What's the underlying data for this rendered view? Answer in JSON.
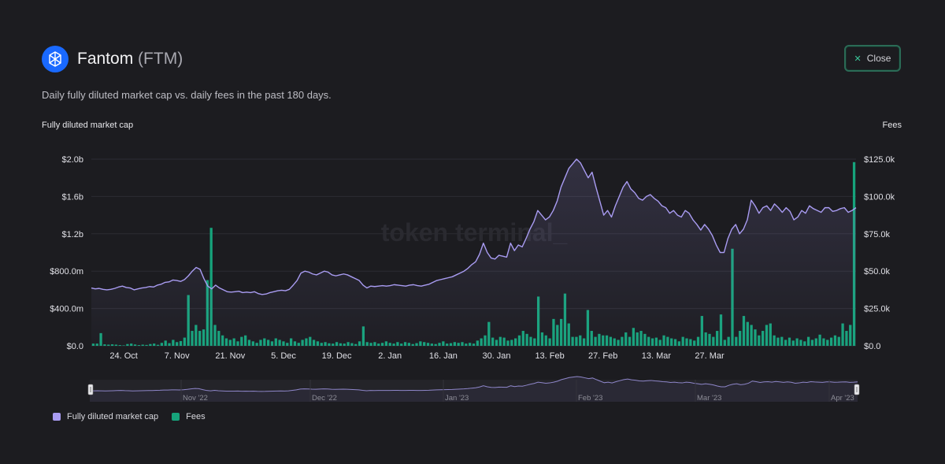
{
  "header": {
    "name": "Fantom",
    "ticker": "(FTM)",
    "close_label": "Close"
  },
  "subtitle": "Daily fully diluted market cap vs. daily fees in the past 180 days.",
  "colors": {
    "background": "#1c1c20",
    "market_cap_line": "#a99cf2",
    "fees_bar": "#16a37b",
    "brand": "#1969ff",
    "close_border": "#2b6b56"
  },
  "chart_data": {
    "type": "bar",
    "watermark": "token terminal_",
    "left_axis_label": "Fully diluted market cap",
    "right_axis_label": "Fees",
    "left_axis": {
      "ticks": [
        "$0.0",
        "$400.0m",
        "$800.0m",
        "$1.2b",
        "$1.6b",
        "$2.0b"
      ],
      "range": [
        0,
        2000000000
      ]
    },
    "right_axis": {
      "ticks": [
        "$0.0",
        "$25.0k",
        "$50.0k",
        "$75.0k",
        "$100.0k",
        "$125.0k"
      ],
      "range": [
        0,
        125000
      ]
    },
    "x_tick_labels": [
      "24. Oct",
      "7. Nov",
      "21. Nov",
      "5. Dec",
      "19. Dec",
      "2. Jan",
      "16. Jan",
      "30. Jan",
      "13. Feb",
      "27. Feb",
      "13. Mar",
      "27. Mar"
    ],
    "navigator_labels": [
      "Nov '22",
      "Dec '22",
      "Jan '23",
      "Feb '23",
      "Mar '23",
      "Apr '23"
    ],
    "grid": true,
    "legend_position": "bottom-left",
    "series": [
      {
        "name": "Fully diluted market cap",
        "type": "line",
        "axis": "left",
        "values": [
          620,
          610,
          615,
          605,
          600,
          605,
          615,
          630,
          640,
          625,
          620,
          600,
          610,
          620,
          625,
          635,
          630,
          650,
          660,
          680,
          685,
          705,
          700,
          690,
          710,
          750,
          800,
          840,
          820,
          720,
          640,
          610,
          650,
          620,
          600,
          580,
          575,
          580,
          585,
          570,
          575,
          570,
          580,
          560,
          550,
          555,
          570,
          580,
          590,
          595,
          590,
          605,
          650,
          700,
          780,
          800,
          790,
          770,
          760,
          780,
          800,
          790,
          760,
          750,
          760,
          770,
          760,
          740,
          720,
          700,
          650,
          620,
          640,
          635,
          640,
          645,
          640,
          645,
          655,
          650,
          645,
          640,
          650,
          655,
          645,
          640,
          650,
          660,
          680,
          700,
          710,
          720,
          730,
          740,
          760,
          780,
          800,
          830,
          870,
          900,
          980,
          1100,
          1000,
          940,
          930,
          970,
          960,
          950,
          1100,
          1020,
          1080,
          1060,
          1150,
          1250,
          1330,
          1450,
          1400,
          1350,
          1380,
          1450,
          1550,
          1700,
          1800,
          1900,
          1950,
          2000,
          1960,
          1880,
          1800,
          1860,
          1700,
          1550,
          1400,
          1450,
          1380,
          1500,
          1600,
          1700,
          1760,
          1680,
          1640,
          1580,
          1560,
          1600,
          1620,
          1580,
          1550,
          1500,
          1480,
          1420,
          1450,
          1400,
          1380,
          1450,
          1420,
          1350,
          1300,
          1240,
          1300,
          1250,
          1180,
          1080,
          1000,
          1000,
          1150,
          1250,
          1300,
          1200,
          1250,
          1350,
          1560,
          1500,
          1420,
          1480,
          1500,
          1450,
          1520,
          1480,
          1430,
          1480,
          1440,
          1350,
          1380,
          1450,
          1420,
          1500,
          1470,
          1450,
          1430,
          1480,
          1480,
          1440,
          1450,
          1470,
          1480,
          1430,
          1450,
          1480
        ]
      },
      {
        "name": "Fees",
        "type": "bar",
        "axis": "right",
        "values": [
          1.5,
          1.5,
          8.5,
          1,
          0.8,
          1,
          0.8,
          0.5,
          0.3,
          1.2,
          1.5,
          0.9,
          0.5,
          0.8,
          0.6,
          1.2,
          1.5,
          0.7,
          2,
          3.5,
          1.8,
          4,
          2.5,
          3.2,
          5.5,
          34,
          10,
          14,
          10,
          11,
          44,
          79,
          14,
          10,
          7,
          5,
          4,
          5,
          3,
          6,
          7,
          4,
          3,
          2,
          4,
          5,
          4,
          3,
          5,
          4,
          3,
          2,
          5,
          3,
          2,
          4,
          5,
          6,
          4,
          3,
          2,
          2.5,
          1.7,
          1.5,
          2.5,
          1.7,
          1.5,
          2.5,
          1.8,
          1.2,
          3,
          13,
          2.5,
          2,
          2.5,
          1.5,
          2,
          3,
          2,
          1.5,
          2.5,
          1.5,
          2.5,
          2,
          1.2,
          1.8,
          3,
          2.5,
          2,
          1.5,
          1.2,
          2,
          3,
          1.5,
          1.8,
          2.5,
          2,
          2.5,
          1.5,
          2,
          1.5,
          3.5,
          5,
          7,
          16,
          5.5,
          4,
          6,
          5.5,
          3.5,
          4,
          5,
          7,
          10,
          8,
          6,
          5,
          33,
          9,
          7,
          5,
          18,
          14,
          18,
          35,
          15,
          6,
          6,
          7,
          5,
          24,
          10,
          6,
          8,
          7,
          7,
          6,
          5,
          4,
          6,
          9,
          6,
          12,
          9,
          10,
          8,
          6,
          5,
          5.5,
          4,
          7,
          6,
          5,
          4.5,
          3,
          6,
          5,
          4.5,
          3.5,
          6,
          20,
          9,
          8,
          6,
          10,
          21,
          4,
          6,
          65,
          6,
          10,
          20,
          16,
          14,
          11,
          7,
          10,
          14,
          15,
          7,
          5.5,
          6,
          4,
          5.5,
          3.5,
          5,
          4,
          3,
          6,
          4,
          5,
          7.5,
          5,
          4,
          5.5,
          7,
          6,
          15,
          10,
          14,
          123
        ]
      }
    ]
  }
}
